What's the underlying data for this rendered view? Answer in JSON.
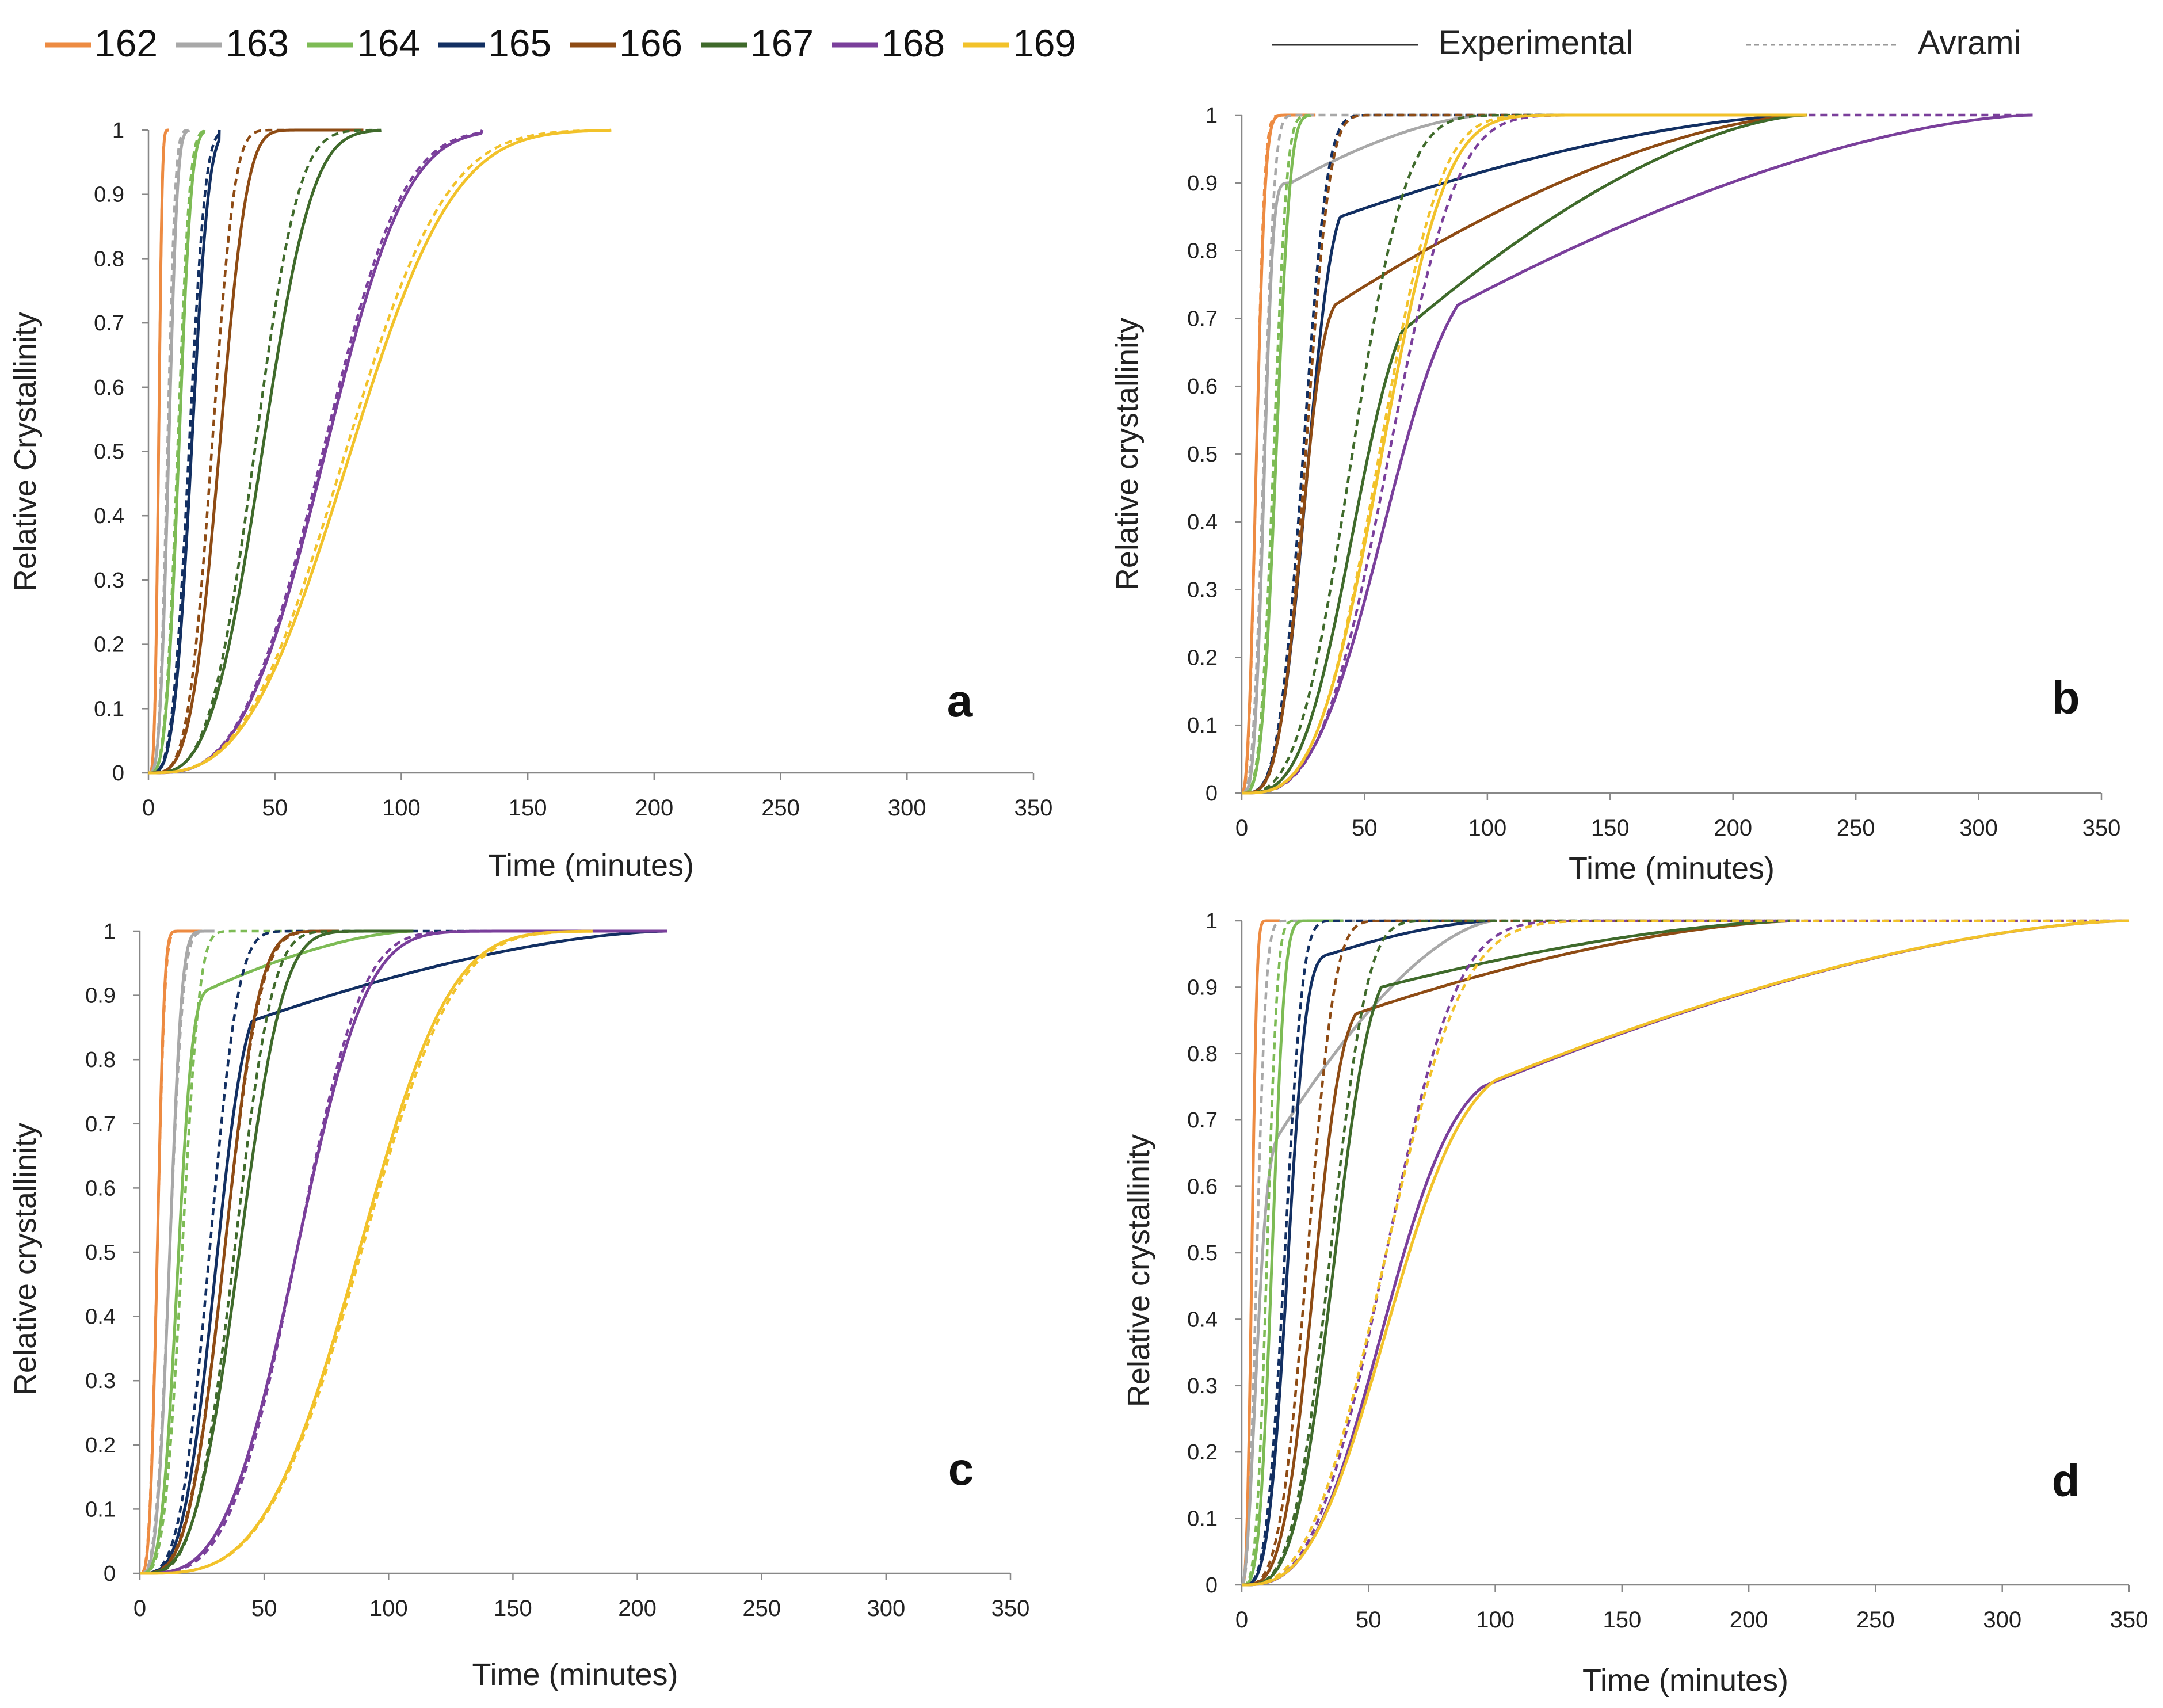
{
  "figure": {
    "legend_temps": {
      "entries": [
        "162",
        "163",
        "164",
        "165",
        "166",
        "167",
        "168",
        "169"
      ],
      "colors": [
        "#ED8B42",
        "#A8A8A8",
        "#7DBB55",
        "#122F62",
        "#8E4B14",
        "#3F6A2B",
        "#7A3F9B",
        "#F2C22A"
      ]
    },
    "legend_styles": {
      "solid": "Experimental",
      "dashed": "Avrami"
    }
  },
  "chart_data": [
    {
      "type": "line",
      "panel": "a",
      "xlabel": "Time (minutes)",
      "ylabel": "Relative Crystallinity",
      "xlim": [
        0,
        350
      ],
      "ylim": [
        0,
        1
      ],
      "xticks": [
        "0",
        "50",
        "100",
        "150",
        "200",
        "250",
        "300",
        "350"
      ],
      "yticks": [
        "0",
        "0.1",
        "0.2",
        "0.3",
        "0.4",
        "0.5",
        "0.6",
        "0.7",
        "0.8",
        "0.9",
        "1"
      ],
      "series": [
        {
          "name": "162",
          "color": "#ED8B42",
          "exp": {
            "t50": 4,
            "n": 4,
            "end": 8
          },
          "avr": {
            "t50": 4,
            "n": 4,
            "end": 8
          }
        },
        {
          "name": "163",
          "color": "#A8A8A8",
          "exp": {
            "t50": 8,
            "n": 3.4,
            "end": 16
          },
          "avr": {
            "t50": 7.5,
            "n": 3.5,
            "end": 16
          }
        },
        {
          "name": "164",
          "color": "#7DBB55",
          "exp": {
            "t50": 12,
            "n": 3.5,
            "end": 22
          },
          "avr": {
            "t50": 11.5,
            "n": 3.5,
            "end": 22
          }
        },
        {
          "name": "165",
          "color": "#122F62",
          "exp": {
            "t50": 17,
            "n": 3.6,
            "end": 28
          },
          "avr": {
            "t50": 16,
            "n": 3.6,
            "end": 28
          }
        },
        {
          "name": "166",
          "color": "#8E4B14",
          "exp": {
            "t50": 28,
            "n": 3.7,
            "end": 85
          },
          "avr": {
            "t50": 25,
            "n": 4,
            "end": 85
          }
        },
        {
          "name": "167",
          "color": "#3F6A2B",
          "exp": {
            "t50": 45,
            "n": 3.3,
            "end": 92
          },
          "avr": {
            "t50": 42,
            "n": 3.5,
            "end": 92
          }
        },
        {
          "name": "168",
          "color": "#7A3F9B",
          "exp": {
            "t50": 70,
            "n": 3.2,
            "end": 132
          },
          "avr": {
            "t50": 69,
            "n": 3.2,
            "end": 132
          }
        },
        {
          "name": "169",
          "color": "#F2C22A",
          "exp": {
            "t50": 80,
            "n": 2.9,
            "end": 183
          },
          "avr": {
            "t50": 78,
            "n": 2.9,
            "end": 183
          }
        }
      ],
      "panel_label": "a"
    },
    {
      "type": "line",
      "panel": "b",
      "xlabel": "Time (minutes)",
      "ylabel": "Relative crystallinity",
      "xlim": [
        0,
        350
      ],
      "ylim": [
        0,
        1
      ],
      "xticks": [
        "0",
        "50",
        "100",
        "150",
        "200",
        "250",
        "300",
        "350"
      ],
      "yticks": [
        "0",
        "0.1",
        "0.2",
        "0.3",
        "0.4",
        "0.5",
        "0.6",
        "0.7",
        "0.8",
        "0.9",
        "1"
      ],
      "series": [
        {
          "name": "162",
          "color": "#ED8B42",
          "exp": {
            "t50": 6,
            "n": 2.5,
            "end": 30
          },
          "avr": {
            "t50": 6,
            "n": 2.7,
            "end": 30
          }
        },
        {
          "name": "163",
          "color": "#A8A8A8",
          "exp": {
            "t50": 9,
            "n": 3.5,
            "plateau": 0.9,
            "tp": 20,
            "end": 100
          },
          "avr": {
            "t50": 9,
            "n": 3,
            "end": 100
          }
        },
        {
          "name": "164",
          "color": "#7DBB55",
          "exp": {
            "t50": 14,
            "n": 3.5,
            "end": 28
          },
          "avr": {
            "t50": 13,
            "n": 3.5,
            "end": 28
          }
        },
        {
          "name": "165",
          "color": "#122F62",
          "exp": {
            "t50": 26,
            "n": 3.5,
            "plateau": 0.85,
            "tp": 40,
            "end": 230
          },
          "avr": {
            "t50": 25,
            "n": 3.7,
            "end": 230
          }
        },
        {
          "name": "166",
          "color": "#8E4B14",
          "exp": {
            "t50": 24,
            "n": 3.7,
            "plateau": 0.72,
            "tp": 38,
            "end": 230
          },
          "avr": {
            "t50": 26,
            "n": 3.8,
            "end": 230
          }
        },
        {
          "name": "167",
          "color": "#3F6A2B",
          "exp": {
            "t50": 45,
            "n": 3.2,
            "plateau": 0.68,
            "tp": 65,
            "end": 230
          },
          "avr": {
            "t50": 45,
            "n": 3,
            "end": 230
          }
        },
        {
          "name": "168",
          "color": "#7A3F9B",
          "exp": {
            "t50": 58,
            "n": 3,
            "plateau": 0.72,
            "tp": 88,
            "end": 322
          },
          "avr": {
            "t50": 60,
            "n": 3.2,
            "end": 322
          }
        },
        {
          "name": "169",
          "color": "#F2C22A",
          "exp": {
            "t50": 57,
            "n": 3.2,
            "end": 230
          },
          "avr": {
            "t50": 56,
            "n": 3.3,
            "end": 230
          }
        }
      ],
      "panel_label": "b"
    },
    {
      "type": "line",
      "panel": "c",
      "xlabel": "Time (minutes)",
      "ylabel": "Relative crystallinity",
      "xlim": [
        0,
        350
      ],
      "ylim": [
        0,
        1
      ],
      "xticks": [
        "0",
        "50",
        "100",
        "150",
        "200",
        "250",
        "300",
        "350"
      ],
      "yticks": [
        "0",
        "0.1",
        "0.2",
        "0.3",
        "0.4",
        "0.5",
        "0.6",
        "0.7",
        "0.8",
        "0.9",
        "1"
      ],
      "series": [
        {
          "name": "162",
          "color": "#ED8B42",
          "exp": {
            "t50": 7,
            "n": 3.5,
            "end": 25
          },
          "avr": {
            "t50": 7,
            "n": 3.3,
            "end": 25
          }
        },
        {
          "name": "163",
          "color": "#A8A8A8",
          "exp": {
            "t50": 12,
            "n": 3.5,
            "end": 30
          },
          "avr": {
            "t50": 12,
            "n": 3.2,
            "end": 30
          }
        },
        {
          "name": "164",
          "color": "#7DBB55",
          "exp": {
            "t50": 15,
            "n": 3.5,
            "plateau": 0.91,
            "tp": 28,
            "end": 110
          },
          "avr": {
            "t50": 17,
            "n": 3.5,
            "end": 110
          }
        },
        {
          "name": "165",
          "color": "#122F62",
          "exp": {
            "t50": 30,
            "n": 3.5,
            "plateau": 0.86,
            "tp": 45,
            "end": 212
          },
          "avr": {
            "t50": 28,
            "n": 3.5,
            "end": 212
          }
        },
        {
          "name": "166",
          "color": "#8E4B14",
          "exp": {
            "t50": 34,
            "n": 3.5,
            "end": 80
          },
          "avr": {
            "t50": 34,
            "n": 3.4,
            "end": 80
          }
        },
        {
          "name": "167",
          "color": "#3F6A2B",
          "exp": {
            "t50": 40,
            "n": 3.3,
            "end": 110
          },
          "avr": {
            "t50": 38,
            "n": 3.6,
            "end": 110
          }
        },
        {
          "name": "168",
          "color": "#7A3F9B",
          "exp": {
            "t50": 63,
            "n": 3.3,
            "end": 212
          },
          "avr": {
            "t50": 63,
            "n": 3.5,
            "end": 212
          }
        },
        {
          "name": "169",
          "color": "#F2C22A",
          "exp": {
            "t50": 88,
            "n": 3.5,
            "end": 182
          },
          "avr": {
            "t50": 89,
            "n": 3.5,
            "end": 182
          }
        }
      ],
      "panel_label": "c"
    },
    {
      "type": "line",
      "panel": "d",
      "xlabel": "Time (minutes)",
      "ylabel": "Relative crystallinity",
      "xlim": [
        0,
        350
      ],
      "ylim": [
        0,
        1
      ],
      "xticks": [
        "0",
        "50",
        "100",
        "150",
        "200",
        "250",
        "300",
        "350"
      ],
      "yticks": [
        "0",
        "0.1",
        "0.2",
        "0.3",
        "0.4",
        "0.5",
        "0.6",
        "0.7",
        "0.8",
        "0.9",
        "1"
      ],
      "series": [
        {
          "name": "162",
          "color": "#ED8B42",
          "exp": {
            "t50": 4,
            "n": 3,
            "end": 15
          },
          "avr": {
            "t50": 4,
            "n": 3,
            "end": 15
          }
        },
        {
          "name": "163",
          "color": "#A8A8A8",
          "exp": {
            "t50": 6,
            "n": 2,
            "plateau": 0.68,
            "tp": 15,
            "end": 100
          },
          "avr": {
            "t50": 6,
            "n": 2.5,
            "end": 100
          }
        },
        {
          "name": "164",
          "color": "#7DBB55",
          "exp": {
            "t50": 12,
            "n": 3.5,
            "end": 40
          },
          "avr": {
            "t50": 10,
            "n": 3.5,
            "end": 40
          }
        },
        {
          "name": "165",
          "color": "#122F62",
          "exp": {
            "t50": 18,
            "n": 3.5,
            "plateau": 0.95,
            "tp": 35,
            "end": 100
          },
          "avr": {
            "t50": 17,
            "n": 3.5,
            "end": 100
          }
        },
        {
          "name": "166",
          "color": "#8E4B14",
          "exp": {
            "t50": 28,
            "n": 3.5,
            "plateau": 0.86,
            "tp": 45,
            "end": 220
          },
          "avr": {
            "t50": 26,
            "n": 3.5,
            "end": 220
          }
        },
        {
          "name": "167",
          "color": "#3F6A2B",
          "exp": {
            "t50": 36,
            "n": 3.5,
            "plateau": 0.9,
            "tp": 55,
            "end": 220
          },
          "avr": {
            "t50": 35,
            "n": 3.5,
            "end": 220
          }
        },
        {
          "name": "168",
          "color": "#7A3F9B",
          "exp": {
            "t50": 56,
            "n": 2.9,
            "plateau": 0.75,
            "tp": 95,
            "end": 350
          },
          "avr": {
            "t50": 57,
            "n": 3,
            "end": 350
          }
        },
        {
          "name": "169",
          "color": "#F2C22A",
          "exp": {
            "t50": 58,
            "n": 2.8,
            "plateau": 0.76,
            "tp": 100,
            "end": 350
          },
          "avr": {
            "t50": 57,
            "n": 2.8,
            "end": 350
          }
        }
      ],
      "panel_label": "d"
    }
  ]
}
